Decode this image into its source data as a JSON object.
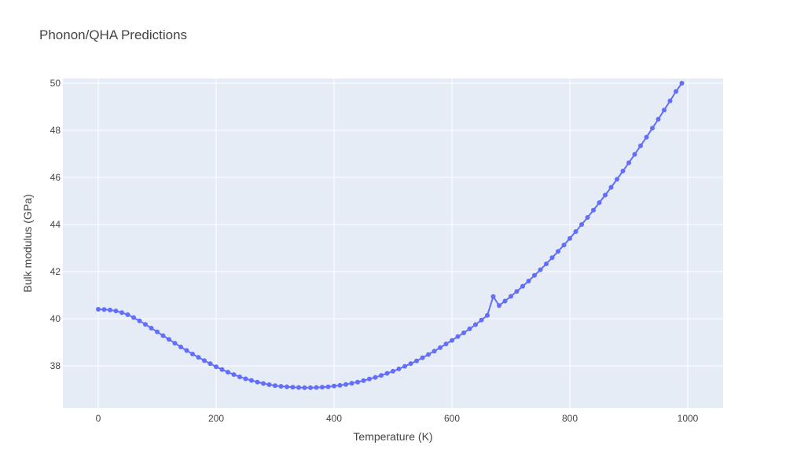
{
  "chart_data": {
    "type": "line",
    "title": "Phonon/QHA Predictions",
    "xlabel": "Temperature (K)",
    "ylabel": "Bulk modulus (GPa)",
    "xlim": [
      -60,
      1060
    ],
    "ylim": [
      36.2,
      50.2
    ],
    "xticks": [
      0,
      200,
      400,
      600,
      800,
      1000
    ],
    "yticks": [
      38,
      40,
      42,
      44,
      46,
      48,
      50
    ],
    "grid": true,
    "legend": "none",
    "series_color": "#636efa",
    "plot_bgcolor": "#e5ecf6",
    "x": [
      0,
      10,
      20,
      30,
      40,
      50,
      60,
      70,
      80,
      90,
      100,
      110,
      120,
      130,
      140,
      150,
      160,
      170,
      180,
      190,
      200,
      210,
      220,
      230,
      240,
      250,
      260,
      270,
      280,
      290,
      300,
      310,
      320,
      330,
      340,
      350,
      360,
      370,
      380,
      390,
      400,
      410,
      420,
      430,
      440,
      450,
      460,
      470,
      480,
      490,
      500,
      510,
      520,
      530,
      540,
      550,
      560,
      570,
      580,
      590,
      600,
      610,
      620,
      630,
      640,
      650,
      660,
      670,
      680,
      690,
      700,
      710,
      720,
      730,
      740,
      750,
      760,
      770,
      780,
      790,
      800,
      810,
      820,
      830,
      840,
      850,
      860,
      870,
      880,
      890,
      900,
      910,
      920,
      930,
      940,
      950,
      960,
      970,
      980,
      990
    ],
    "y": [
      40.4,
      40.39,
      40.37,
      40.33,
      40.26,
      40.17,
      40.05,
      39.91,
      39.76,
      39.6,
      39.44,
      39.28,
      39.12,
      38.96,
      38.8,
      38.65,
      38.5,
      38.36,
      38.22,
      38.09,
      37.96,
      37.84,
      37.73,
      37.63,
      37.53,
      37.45,
      37.38,
      37.31,
      37.25,
      37.2,
      37.16,
      37.13,
      37.11,
      37.09,
      37.08,
      37.07,
      37.07,
      37.08,
      37.09,
      37.11,
      37.14,
      37.17,
      37.21,
      37.26,
      37.31,
      37.37,
      37.44,
      37.51,
      37.59,
      37.68,
      37.77,
      37.87,
      37.98,
      38.09,
      38.21,
      38.34,
      38.48,
      38.62,
      38.77,
      38.93,
      39.08,
      39.24,
      39.4,
      39.57,
      39.75,
      39.94,
      40.14,
      40.94,
      40.56,
      40.75,
      40.95,
      41.16,
      41.38,
      41.6,
      41.84,
      42.08,
      42.33,
      42.59,
      42.86,
      43.13,
      43.41,
      43.7,
      44.0,
      44.3,
      44.61,
      44.93,
      45.25,
      45.58,
      45.92,
      46.27,
      46.62,
      46.98,
      47.34,
      47.71,
      48.09,
      48.47,
      48.86,
      49.25,
      49.65,
      50.0
    ]
  }
}
